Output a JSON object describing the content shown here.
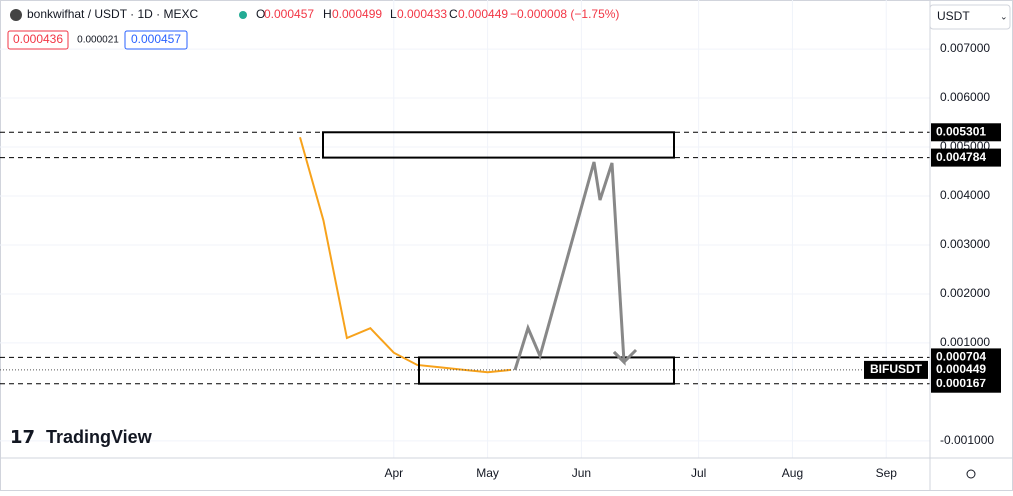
{
  "header": {
    "symbol": "bonkwifhat / USDT · 1D · MEXC",
    "o": "O",
    "open": "0.000457",
    "h": "H",
    "high": "0.000499",
    "l": "L",
    "low": "0.000433",
    "c": "C",
    "close": "0.000449",
    "change": "−0.000008 (−1.75%)",
    "bid": "0.000436",
    "spread": "0.000021",
    "ask": "0.000457",
    "currency": "USDT",
    "brand": "TradingView"
  },
  "chart_data": {
    "type": "line",
    "categories": [
      null,
      null,
      null,
      null,
      "Apr",
      null,
      null,
      null,
      "May",
      null,
      null,
      null,
      "Jun",
      null,
      null,
      null,
      null,
      "Jul",
      null,
      null,
      null,
      "Aug",
      null,
      null,
      null,
      "Sep",
      null
    ],
    "series": [
      {
        "name": "BIFUSDT",
        "color": "#f7a21b",
        "values": [
          0.0052,
          0.0035,
          0.0011,
          0.0013,
          0.0008,
          0.00055,
          0.0005,
          0.00045,
          0.0004,
          0.00045,
          null,
          null,
          null,
          null,
          null,
          null,
          null,
          null,
          null,
          null,
          null,
          null,
          null,
          null,
          null,
          null,
          null
        ]
      }
    ],
    "ylim": [
      -0.00135,
      0.0079
    ],
    "yticks": [
      {
        "value": 0.007,
        "label": "0.007000"
      },
      {
        "value": 0.006,
        "label": "0.006000"
      },
      {
        "value": 0.005,
        "label": "0.005000"
      },
      {
        "value": 0.004,
        "label": "0.004000"
      },
      {
        "value": 0.003,
        "label": "0.003000"
      },
      {
        "value": 0.002,
        "label": "0.002000"
      },
      {
        "value": 0.001,
        "label": "0.001000"
      },
      {
        "value": -0.001,
        "label": "-0.001000"
      }
    ],
    "grid": true,
    "price_levels": [
      0.005301,
      0.004784,
      0.000704,
      0.000167
    ],
    "current_price": 0.000449
  }
}
